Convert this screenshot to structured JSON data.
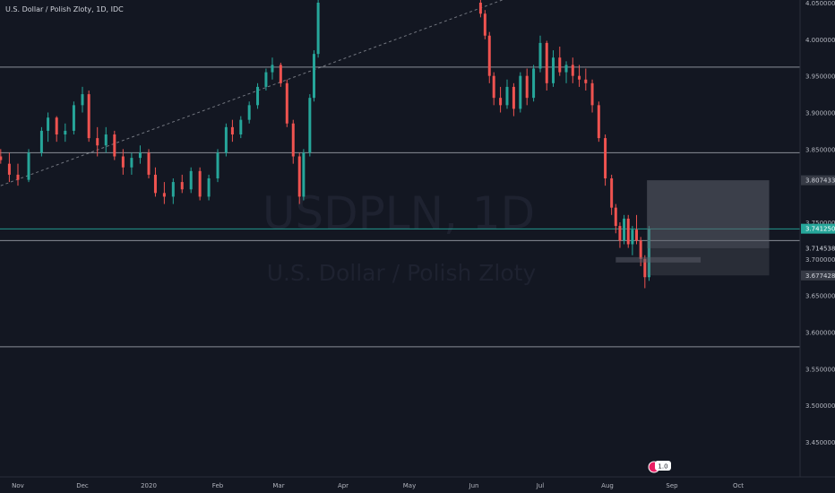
{
  "header": {
    "title": "U.S. Dollar / Polish Zloty, 1D, IDC"
  },
  "watermark": {
    "symbol": "USDPLN, 1D",
    "name": "U.S. Dollar / Polish Zloty"
  },
  "badge": {
    "text": "1.0"
  },
  "colors": {
    "background": "#131722",
    "up": "#26a69a",
    "down": "#ef5350",
    "grid_line": "#b2b5be",
    "axis_text": "#b2b5be",
    "zone": "#5d606b",
    "current_price": "#26a69a"
  },
  "chart_data": {
    "type": "candlestick",
    "title": "U.S. Dollar / Polish Zloty, 1D, IDC",
    "xlabel": "",
    "ylabel": "",
    "x_ticks": [
      "Nov",
      "Dec",
      "2020",
      "Feb",
      "Mar",
      "Apr",
      "May",
      "Jun",
      "Jul",
      "Aug",
      "Sep",
      "Oct"
    ],
    "y_ticks": [
      "4.050000",
      "4.000000",
      "3.950000",
      "3.900000",
      "3.850000",
      "3.750000",
      "3.700000",
      "3.650000",
      "3.600000",
      "3.550000",
      "3.500000",
      "3.450000"
    ],
    "ylim": [
      3.42,
      4.055
    ],
    "price_labels": [
      {
        "text": "3.807433",
        "value": 3.807433,
        "style": "zone"
      },
      {
        "text": "3.741250",
        "value": 3.74125,
        "style": "current"
      },
      {
        "text": "3.714538",
        "value": 3.714538,
        "style": "plain"
      },
      {
        "text": "3.677428",
        "value": 3.677428,
        "style": "zone"
      }
    ],
    "horizontal_lines": [
      3.962,
      3.845,
      3.741,
      3.725,
      3.58
    ],
    "trendline": {
      "from": {
        "date": "2019-10-24",
        "value": 3.8
      },
      "to": {
        "date": "2020-06-15",
        "value": 4.055
      }
    },
    "long_position": {
      "from": "2020-08-20",
      "to": "2020-10-15",
      "entry": 3.714538,
      "target": 3.807433,
      "stop": 3.677428
    },
    "candles": [
      {
        "t": "Oct 24",
        "o": 3.84,
        "h": 3.85,
        "l": 3.83,
        "c": 3.835
      },
      {
        "t": "Oct 28",
        "o": 3.83,
        "h": 3.845,
        "l": 3.805,
        "c": 3.815
      },
      {
        "t": "Nov 1",
        "o": 3.815,
        "h": 3.83,
        "l": 3.8,
        "c": 3.808
      },
      {
        "t": "Nov 6",
        "o": 3.808,
        "h": 3.85,
        "l": 3.805,
        "c": 3.845
      },
      {
        "t": "Nov 12",
        "o": 3.845,
        "h": 3.88,
        "l": 3.84,
        "c": 3.875
      },
      {
        "t": "Nov 15",
        "o": 3.875,
        "h": 3.9,
        "l": 3.86,
        "c": 3.893
      },
      {
        "t": "Nov 19",
        "o": 3.893,
        "h": 3.895,
        "l": 3.86,
        "c": 3.87
      },
      {
        "t": "Nov 23",
        "o": 3.87,
        "h": 3.885,
        "l": 3.86,
        "c": 3.875
      },
      {
        "t": "Nov 27",
        "o": 3.875,
        "h": 3.915,
        "l": 3.87,
        "c": 3.91
      },
      {
        "t": "Dec 1",
        "o": 3.91,
        "h": 3.935,
        "l": 3.9,
        "c": 3.925
      },
      {
        "t": "Dec 4",
        "o": 3.925,
        "h": 3.93,
        "l": 3.86,
        "c": 3.865
      },
      {
        "t": "Dec 8",
        "o": 3.865,
        "h": 3.88,
        "l": 3.84,
        "c": 3.855
      },
      {
        "t": "Dec 12",
        "o": 3.855,
        "h": 3.88,
        "l": 3.845,
        "c": 3.87
      },
      {
        "t": "Dec 16",
        "o": 3.87,
        "h": 3.875,
        "l": 3.835,
        "c": 3.84
      },
      {
        "t": "Dec 20",
        "o": 3.84,
        "h": 3.85,
        "l": 3.815,
        "c": 3.825
      },
      {
        "t": "Dec 24",
        "o": 3.825,
        "h": 3.845,
        "l": 3.815,
        "c": 3.838
      },
      {
        "t": "Dec 28",
        "o": 3.838,
        "h": 3.855,
        "l": 3.83,
        "c": 3.845
      },
      {
        "t": "Jan 1",
        "o": 3.845,
        "h": 3.85,
        "l": 3.81,
        "c": 3.815
      },
      {
        "t": "Jan 4",
        "o": 3.815,
        "h": 3.825,
        "l": 3.785,
        "c": 3.79
      },
      {
        "t": "Jan 8",
        "o": 3.79,
        "h": 3.805,
        "l": 3.775,
        "c": 3.785
      },
      {
        "t": "Jan 12",
        "o": 3.785,
        "h": 3.81,
        "l": 3.775,
        "c": 3.805
      },
      {
        "t": "Jan 16",
        "o": 3.805,
        "h": 3.815,
        "l": 3.79,
        "c": 3.795
      },
      {
        "t": "Jan 20",
        "o": 3.795,
        "h": 3.825,
        "l": 3.79,
        "c": 3.82
      },
      {
        "t": "Jan 24",
        "o": 3.82,
        "h": 3.825,
        "l": 3.78,
        "c": 3.785
      },
      {
        "t": "Jan 28",
        "o": 3.785,
        "h": 3.815,
        "l": 3.78,
        "c": 3.81
      },
      {
        "t": "Feb 1",
        "o": 3.81,
        "h": 3.85,
        "l": 3.805,
        "c": 3.845
      },
      {
        "t": "Feb 5",
        "o": 3.845,
        "h": 3.885,
        "l": 3.84,
        "c": 3.88
      },
      {
        "t": "Feb 8",
        "o": 3.88,
        "h": 3.89,
        "l": 3.86,
        "c": 3.87
      },
      {
        "t": "Feb 12",
        "o": 3.87,
        "h": 3.895,
        "l": 3.865,
        "c": 3.89
      },
      {
        "t": "Feb 16",
        "o": 3.89,
        "h": 3.915,
        "l": 3.885,
        "c": 3.91
      },
      {
        "t": "Feb 20",
        "o": 3.91,
        "h": 3.94,
        "l": 3.905,
        "c": 3.935
      },
      {
        "t": "Feb 24",
        "o": 3.935,
        "h": 3.96,
        "l": 3.93,
        "c": 3.955
      },
      {
        "t": "Feb 27",
        "o": 3.955,
        "h": 3.975,
        "l": 3.945,
        "c": 3.965
      },
      {
        "t": "Mar 2",
        "o": 3.965,
        "h": 3.968,
        "l": 3.935,
        "c": 3.94
      },
      {
        "t": "Mar 5",
        "o": 3.94,
        "h": 3.945,
        "l": 3.88,
        "c": 3.885
      },
      {
        "t": "Mar 8",
        "o": 3.885,
        "h": 3.89,
        "l": 3.83,
        "c": 3.84
      },
      {
        "t": "Mar 11",
        "o": 3.84,
        "h": 3.845,
        "l": 3.775,
        "c": 3.785
      },
      {
        "t": "Mar 13",
        "o": 3.785,
        "h": 3.85,
        "l": 3.78,
        "c": 3.845
      },
      {
        "t": "Mar 16",
        "o": 3.845,
        "h": 3.925,
        "l": 3.84,
        "c": 3.92
      },
      {
        "t": "Mar 18",
        "o": 3.92,
        "h": 3.985,
        "l": 3.915,
        "c": 3.98
      },
      {
        "t": "Mar 20",
        "o": 3.98,
        "h": 4.055,
        "l": 3.975,
        "c": 4.05
      },
      {
        "t": "Jun 4",
        "o": 4.05,
        "h": 4.055,
        "l": 4.03,
        "c": 4.035
      },
      {
        "t": "Jun 6",
        "o": 4.035,
        "h": 4.04,
        "l": 4.0,
        "c": 4.005
      },
      {
        "t": "Jun 8",
        "o": 4.005,
        "h": 4.01,
        "l": 3.94,
        "c": 3.95
      },
      {
        "t": "Jun 10",
        "o": 3.95,
        "h": 3.955,
        "l": 3.91,
        "c": 3.92
      },
      {
        "t": "Jun 13",
        "o": 3.92,
        "h": 3.935,
        "l": 3.9,
        "c": 3.91
      },
      {
        "t": "Jun 16",
        "o": 3.91,
        "h": 3.945,
        "l": 3.905,
        "c": 3.935
      },
      {
        "t": "Jun 19",
        "o": 3.935,
        "h": 3.94,
        "l": 3.895,
        "c": 3.905
      },
      {
        "t": "Jun 22",
        "o": 3.905,
        "h": 3.955,
        "l": 3.9,
        "c": 3.95
      },
      {
        "t": "Jun 25",
        "o": 3.95,
        "h": 3.96,
        "l": 3.91,
        "c": 3.92
      },
      {
        "t": "Jun 28",
        "o": 3.92,
        "h": 3.965,
        "l": 3.915,
        "c": 3.96
      },
      {
        "t": "Jul 1",
        "o": 3.96,
        "h": 4.005,
        "l": 3.955,
        "c": 3.995
      },
      {
        "t": "Jul 4",
        "o": 3.995,
        "h": 3.998,
        "l": 3.93,
        "c": 3.94
      },
      {
        "t": "Jul 7",
        "o": 3.94,
        "h": 3.985,
        "l": 3.935,
        "c": 3.975
      },
      {
        "t": "Jul 10",
        "o": 3.975,
        "h": 3.99,
        "l": 3.95,
        "c": 3.955
      },
      {
        "t": "Jul 13",
        "o": 3.955,
        "h": 3.97,
        "l": 3.94,
        "c": 3.965
      },
      {
        "t": "Jul 16",
        "o": 3.965,
        "h": 3.975,
        "l": 3.94,
        "c": 3.95
      },
      {
        "t": "Jul 19",
        "o": 3.95,
        "h": 3.965,
        "l": 3.935,
        "c": 3.945
      },
      {
        "t": "Jul 22",
        "o": 3.945,
        "h": 3.96,
        "l": 3.93,
        "c": 3.94
      },
      {
        "t": "Jul 25",
        "o": 3.94,
        "h": 3.945,
        "l": 3.9,
        "c": 3.91
      },
      {
        "t": "Jul 28",
        "o": 3.91,
        "h": 3.915,
        "l": 3.86,
        "c": 3.865
      },
      {
        "t": "Jul 31",
        "o": 3.865,
        "h": 3.87,
        "l": 3.8,
        "c": 3.81
      },
      {
        "t": "Aug 3",
        "o": 3.81,
        "h": 3.815,
        "l": 3.76,
        "c": 3.77
      },
      {
        "t": "Aug 5",
        "o": 3.77,
        "h": 3.775,
        "l": 3.735,
        "c": 3.745
      },
      {
        "t": "Aug 7",
        "o": 3.745,
        "h": 3.75,
        "l": 3.715,
        "c": 3.725
      },
      {
        "t": "Aug 9",
        "o": 3.725,
        "h": 3.76,
        "l": 3.72,
        "c": 3.755
      },
      {
        "t": "Aug 11",
        "o": 3.755,
        "h": 3.76,
        "l": 3.715,
        "c": 3.72
      },
      {
        "t": "Aug 13",
        "o": 3.72,
        "h": 3.745,
        "l": 3.705,
        "c": 3.74
      },
      {
        "t": "Aug 15",
        "o": 3.74,
        "h": 3.76,
        "l": 3.72,
        "c": 3.725
      },
      {
        "t": "Aug 17",
        "o": 3.725,
        "h": 3.73,
        "l": 3.69,
        "c": 3.7
      },
      {
        "t": "Aug 19",
        "o": 3.7,
        "h": 3.705,
        "l": 3.66,
        "c": 3.675
      },
      {
        "t": "Aug 21",
        "o": 3.675,
        "h": 3.745,
        "l": 3.67,
        "c": 3.741
      }
    ]
  }
}
